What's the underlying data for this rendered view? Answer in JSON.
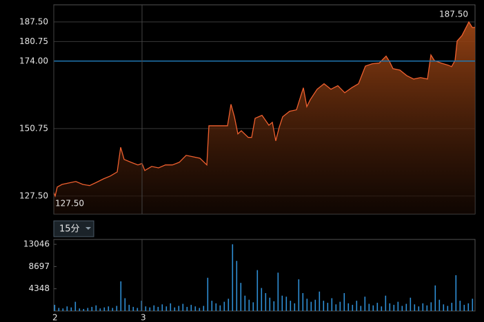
{
  "chart_data": [
    {
      "type": "area",
      "color": "#f0602f",
      "ref_color": "#1f78b4",
      "ref_line": 174,
      "max_label": "187.50",
      "min_label": "127.50",
      "xlim": [
        0,
        611
      ],
      "ylim": [
        121.3,
        193.4
      ],
      "yticks": [
        {
          "value": 127.5,
          "label": "127.50"
        },
        {
          "value": 150.75,
          "label": "150.75"
        },
        {
          "value": 174,
          "label": "174.00"
        },
        {
          "value": 180.75,
          "label": "180.75"
        },
        {
          "value": 187.5,
          "label": "187.50"
        }
      ],
      "grid": true,
      "x": [
        0,
        2,
        5,
        12,
        22,
        32,
        42,
        52,
        62,
        72,
        82,
        92,
        97,
        102,
        112,
        122,
        128,
        132,
        142,
        152,
        162,
        172,
        182,
        192,
        202,
        212,
        222,
        225,
        252,
        257,
        262,
        267,
        272,
        282,
        287,
        292,
        302,
        312,
        317,
        322,
        327,
        332,
        342,
        352,
        362,
        367,
        372,
        382,
        392,
        402,
        412,
        422,
        432,
        442,
        452,
        462,
        472,
        482,
        487,
        492,
        502,
        512,
        522,
        532,
        542,
        547,
        552,
        562,
        572,
        577,
        582,
        585,
        592,
        602,
        607,
        611
      ],
      "values": [
        128.7,
        127.5,
        130.6,
        131.5,
        132.0,
        132.5,
        131.5,
        131.1,
        132.2,
        133.4,
        134.4,
        135.8,
        144.3,
        140.1,
        139.1,
        138.2,
        138.7,
        136.3,
        137.7,
        137.2,
        138.2,
        138.2,
        139.1,
        141.5,
        141.0,
        140.5,
        138.2,
        151.7,
        151.7,
        159.1,
        154.8,
        148.9,
        150.0,
        147.7,
        147.7,
        154.3,
        155.3,
        151.9,
        152.9,
        146.5,
        151.2,
        154.8,
        156.7,
        157.2,
        164.8,
        158.3,
        160.7,
        164.3,
        166.2,
        164.3,
        165.5,
        163.1,
        164.8,
        166.2,
        172.3,
        173.1,
        173.3,
        175.7,
        173.8,
        171.4,
        170.9,
        169.0,
        167.8,
        168.3,
        167.8,
        176.1,
        174.2,
        173.3,
        172.6,
        172.1,
        174.2,
        180.9,
        182.8,
        187.5,
        185.6,
        185.6
      ]
    },
    {
      "type": "bar",
      "color": "#2f8fd6",
      "xlim": [
        0,
        611
      ],
      "ylim": [
        0,
        14000
      ],
      "yticks": [
        4348,
        8697,
        13046
      ],
      "xticks": [
        {
          "value": 0,
          "label": "2"
        },
        {
          "value": 128,
          "label": "3"
        }
      ],
      "x": [
        0,
        6,
        12,
        18,
        24,
        30,
        36,
        42,
        48,
        54,
        60,
        66,
        72,
        78,
        84,
        90,
        96,
        102,
        108,
        114,
        120,
        126,
        132,
        138,
        144,
        150,
        156,
        162,
        168,
        174,
        180,
        186,
        192,
        198,
        204,
        210,
        216,
        222,
        228,
        234,
        240,
        246,
        252,
        258,
        264,
        270,
        276,
        282,
        288,
        294,
        300,
        306,
        312,
        318,
        324,
        330,
        336,
        342,
        348,
        354,
        360,
        366,
        372,
        378,
        384,
        390,
        396,
        402,
        408,
        414,
        420,
        426,
        432,
        438,
        444,
        450,
        456,
        462,
        468,
        474,
        480,
        486,
        492,
        498,
        504,
        510,
        516,
        522,
        528,
        534,
        540,
        546,
        552,
        558,
        564,
        570,
        576,
        582,
        588,
        594,
        600,
        606
      ],
      "values": [
        1200,
        600,
        500,
        900,
        700,
        1800,
        500,
        400,
        600,
        800,
        1100,
        500,
        700,
        900,
        600,
        1000,
        5800,
        2500,
        1200,
        800,
        600,
        2000,
        900,
        700,
        1100,
        800,
        1300,
        900,
        1500,
        700,
        1000,
        1400,
        800,
        1200,
        900,
        600,
        1000,
        6500,
        2000,
        1500,
        1100,
        1800,
        2400,
        13046,
        9800,
        5500,
        3000,
        2200,
        1700,
        8000,
        4500,
        3500,
        2600,
        1900,
        7500,
        3000,
        2800,
        2000,
        1500,
        6200,
        3500,
        2400,
        1800,
        2200,
        3800,
        2000,
        1600,
        2500,
        1300,
        1800,
        3500,
        1500,
        1200,
        2000,
        1000,
        2800,
        1400,
        1100,
        1600,
        900,
        3000,
        1500,
        1200,
        1800,
        1000,
        1400,
        2600,
        1300,
        900,
        1500,
        1100,
        1700,
        5000,
        2200,
        1300,
        1000,
        1600,
        7000,
        2000,
        1200,
        1500,
        2400
      ]
    }
  ],
  "controls": {
    "interval": "15分"
  }
}
